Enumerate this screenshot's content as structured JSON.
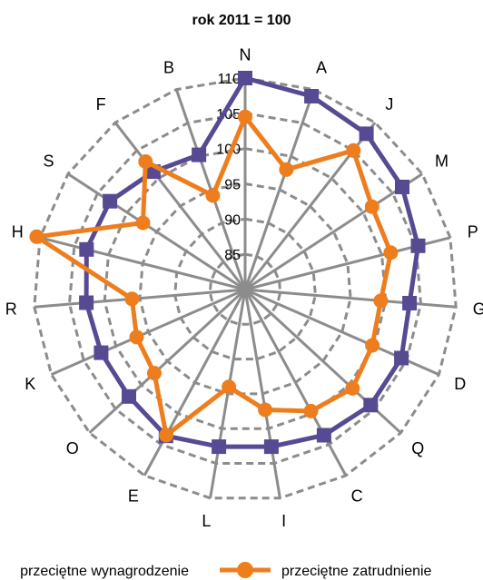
{
  "chart_data": {
    "type": "radar",
    "title": "rok 2011 = 100",
    "categories": [
      "N",
      "A",
      "J",
      "M",
      "P",
      "G",
      "D",
      "Q",
      "C",
      "I",
      "L",
      "E",
      "O",
      "K",
      "R",
      "H",
      "S",
      "F",
      "B"
    ],
    "rlim": [
      80,
      110
    ],
    "ticks": [
      85,
      90,
      95,
      100,
      105,
      110
    ],
    "grid": true,
    "series": [
      {
        "name": "przeciętne wynagrodzenie",
        "color": "#574a93",
        "marker": "square",
        "values": [
          110,
          109,
          108,
          106.6,
          105.3,
          103.4,
          104.2,
          104.2,
          103.5,
          102.6,
          102.6,
          103.6,
          102.4,
          102.3,
          102.6,
          103.2,
          102.9,
          101.2,
          100.2
        ]
      },
      {
        "name": "przeciętne zatrudnienie",
        "color": "#ee7d1e",
        "marker": "circle",
        "values": [
          104.5,
          98,
          105,
          101.5,
          101.3,
          99.3,
          99.7,
          100.7,
          99.6,
          97.3,
          94,
          103.5,
          97.5,
          96.8,
          96.1,
          110.5,
          97.3,
          103,
          94.1
        ]
      }
    ]
  }
}
